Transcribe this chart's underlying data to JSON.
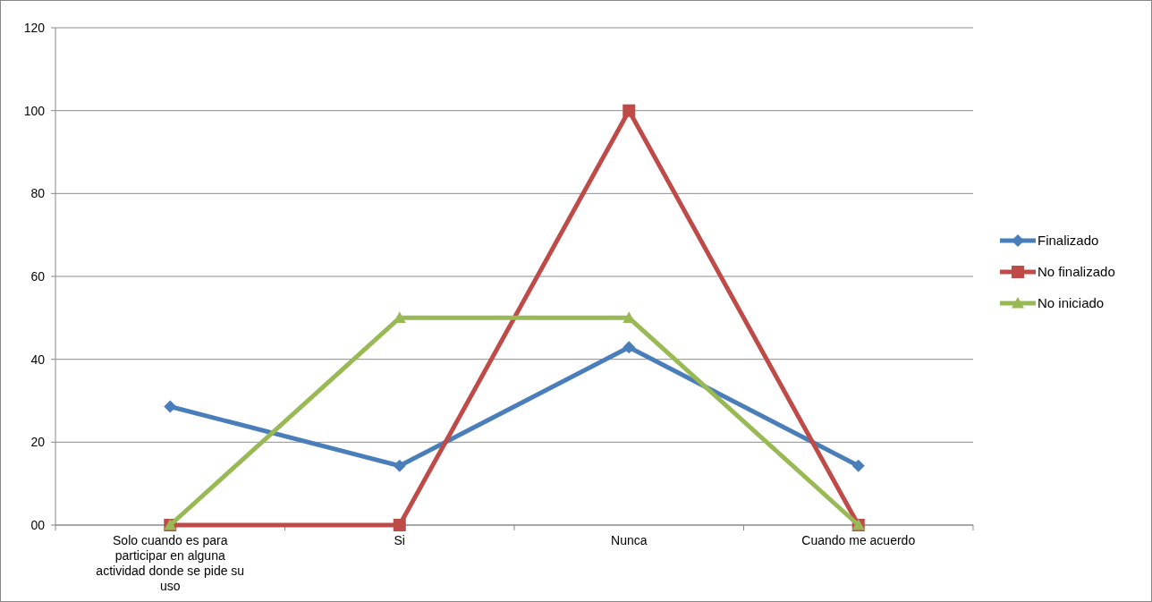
{
  "chart_data": {
    "type": "line",
    "categories": [
      "Solo cuando es para participar en alguna actividad donde se pide su uso",
      "Si",
      "Nunca",
      "Cuando me acuerdo"
    ],
    "series": [
      {
        "name": "Finalizado",
        "color": "#4a7ebb",
        "marker": "diamond",
        "values": [
          28.6,
          14.3,
          42.9,
          14.3
        ]
      },
      {
        "name": "No finalizado",
        "color": "#be4b48",
        "marker": "square",
        "values": [
          0,
          0,
          100,
          0
        ]
      },
      {
        "name": "No iniciado",
        "color": "#98b954",
        "marker": "triangle",
        "values": [
          0,
          50,
          50,
          0
        ]
      }
    ],
    "ylim": [
      0,
      120
    ],
    "yticks": [
      {
        "value": 0,
        "label": "00"
      },
      20,
      40,
      60,
      80,
      100,
      120
    ],
    "grid": "y",
    "legend": "right",
    "line_style": "solid"
  }
}
